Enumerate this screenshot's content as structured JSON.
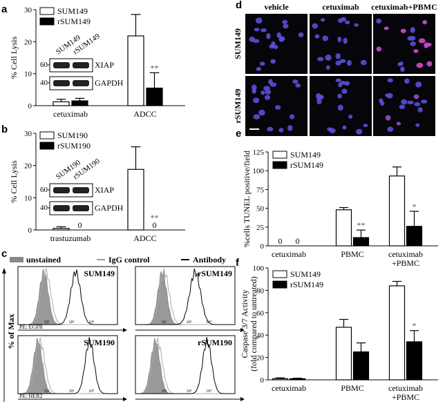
{
  "panels": {
    "a": {
      "letter": "a"
    },
    "b": {
      "letter": "b"
    },
    "c": {
      "letter": "c"
    },
    "d": {
      "letter": "d"
    },
    "e": {
      "letter": "e"
    },
    "f": {
      "letter": "f"
    }
  },
  "chart_data": [
    {
      "id": "a",
      "type": "bar",
      "ylabel": "% Cell Lysis",
      "ylim": [
        0,
        30
      ],
      "yticks": [
        0,
        10,
        20,
        30
      ],
      "categories": [
        "cetuximab",
        "ADCC"
      ],
      "series": [
        {
          "name": "SUM149",
          "color": "#ffffff",
          "values": [
            1.2,
            21.8
          ],
          "errors": [
            0.8,
            6.7
          ]
        },
        {
          "name": "rSUM149",
          "color": "#000000",
          "values": [
            1.5,
            5.5
          ],
          "errors": [
            0.8,
            4.8
          ]
        }
      ],
      "annotations": [
        {
          "series": 1,
          "category": 1,
          "text": "**"
        }
      ],
      "legend": "top-left",
      "inset": {
        "lanes": [
          "SUM149",
          "rSUM149"
        ],
        "bands": [
          {
            "mw": "60",
            "label": "XIAP"
          },
          {
            "mw": "40",
            "label": "GAPDH"
          }
        ]
      }
    },
    {
      "id": "b",
      "type": "bar",
      "ylabel": "% Cell Lysis",
      "ylim": [
        0,
        30
      ],
      "yticks": [
        0,
        10,
        20,
        30
      ],
      "categories": [
        "trastuzumab",
        "ADCC"
      ],
      "series": [
        {
          "name": "SUM190",
          "color": "#ffffff",
          "values": [
            0.5,
            18.8
          ],
          "errors": [
            0.5,
            7.0
          ]
        },
        {
          "name": "rSUM190",
          "color": "#000000",
          "values": [
            0,
            0
          ],
          "errors": [
            0,
            0
          ]
        }
      ],
      "annotations": [
        {
          "series": 1,
          "category": 0,
          "text": "0"
        },
        {
          "series": 1,
          "category": 1,
          "text": "0"
        },
        {
          "series": 1,
          "category": 1,
          "text": "**",
          "above": true
        }
      ],
      "legend": "top-left",
      "inset": {
        "lanes": [
          "SUM190",
          "rSUM190"
        ],
        "bands": [
          {
            "mw": "60",
            "label": "XIAP"
          },
          {
            "mw": "40",
            "label": "GAPDH"
          }
        ]
      }
    },
    {
      "id": "c",
      "type": "histogram",
      "ylabel": "% of Max",
      "legend": [
        {
          "label": "unstained",
          "style": "filled-gray"
        },
        {
          "label": "IgG control",
          "style": "line-gray"
        },
        {
          "label": "Antibody",
          "style": "line-black"
        }
      ],
      "xticks": [
        "10⁰",
        "10¹",
        "10²",
        "10³",
        "10⁴",
        "10⁵"
      ],
      "subplots": [
        {
          "title": "SUM149",
          "xlabel": "PE: EGFR"
        },
        {
          "title": "rSUM149",
          "xlabel": ""
        },
        {
          "title": "SUM190",
          "xlabel": "PE: HER2"
        },
        {
          "title": "rSUM190",
          "xlabel": ""
        }
      ]
    },
    {
      "id": "d",
      "type": "image-grid",
      "columns": [
        "vehicle",
        "cetuximab",
        "cetuximab+PBMC"
      ],
      "rows": [
        "SUM149",
        "rSUM149"
      ]
    },
    {
      "id": "e",
      "type": "bar",
      "ylabel": "%cells TUNEL positive/field",
      "ylim": [
        0,
        125
      ],
      "yticks": [
        0,
        25,
        50,
        75,
        100,
        125
      ],
      "categories": [
        "cetuximab",
        "PBMC",
        "cetuximab\n+PBMC"
      ],
      "series": [
        {
          "name": "SUM149",
          "color": "#ffffff",
          "values": [
            0,
            48,
            93
          ],
          "errors": [
            0,
            3,
            12
          ]
        },
        {
          "name": "rSUM149",
          "color": "#000000",
          "values": [
            0,
            11,
            26
          ],
          "errors": [
            0,
            10,
            20
          ]
        }
      ],
      "annotations": [
        {
          "series": 0,
          "category": 0,
          "text": "0"
        },
        {
          "series": 1,
          "category": 0,
          "text": "0"
        },
        {
          "series": 1,
          "category": 1,
          "text": "**"
        },
        {
          "series": 1,
          "category": 2,
          "text": "*"
        }
      ],
      "legend": "top-left"
    },
    {
      "id": "f",
      "type": "bar",
      "ylabel": "Caspase 3/7 Activity\n(fold compared to untreated)",
      "ylim": [
        0,
        100
      ],
      "yticks": [
        0,
        20,
        40,
        60,
        80,
        100
      ],
      "categories": [
        "cetuximab",
        "PBMC",
        "cetuximab\n+PBMC"
      ],
      "series": [
        {
          "name": "SUM149",
          "color": "#ffffff",
          "values": [
            1,
            47,
            84
          ],
          "errors": [
            0.8,
            7,
            4
          ]
        },
        {
          "name": "rSUM149",
          "color": "#000000",
          "values": [
            1,
            25,
            34
          ],
          "errors": [
            0.5,
            8,
            10
          ]
        }
      ],
      "annotations": [
        {
          "series": 1,
          "category": 2,
          "text": "*"
        }
      ],
      "legend": "top-left"
    }
  ]
}
